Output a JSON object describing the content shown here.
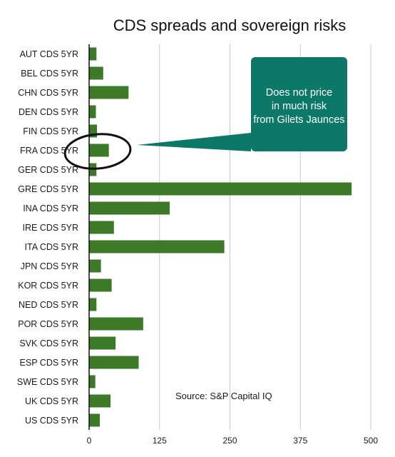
{
  "chart_data": {
    "type": "bar",
    "orientation": "horizontal",
    "title": "CDS spreads and sovereign risks",
    "categories": [
      "AUT CDS 5YR",
      "BEL CDS 5YR",
      "CHN CDS 5YR",
      "DEN CDS 5YR",
      "FIN CDS 5YR",
      "FRA CDS 5YR",
      "GER CDS 5YR",
      "GRE CDS 5YR",
      "INA CDS 5YR",
      "IRE CDS 5YR",
      "ITA CDS 5YR",
      "JPN CDS 5YR",
      "KOR CDS 5YR",
      "NED CDS 5YR",
      "POR CDS 5YR",
      "SVK CDS 5YR",
      "ESP CDS 5YR",
      "SWE CDS 5YR",
      "UK CDS 5YR",
      "US CDS 5YR"
    ],
    "values": [
      13,
      25,
      70,
      12,
      14,
      35,
      13,
      466,
      143,
      44,
      240,
      21,
      40,
      13,
      96,
      47,
      88,
      11,
      38,
      19
    ],
    "xlim": [
      0,
      500
    ],
    "xticks": [
      "0",
      "125",
      "250",
      "375",
      "500"
    ],
    "grid": true,
    "bar_color": "#3d7a27",
    "annotations": {
      "callout": "Does not price in much risk from Gilets Jaunces",
      "callout_color": "#0b7868",
      "highlighted_category": "FRA CDS 5YR",
      "source": "Source: S&P Capital IQ"
    }
  }
}
